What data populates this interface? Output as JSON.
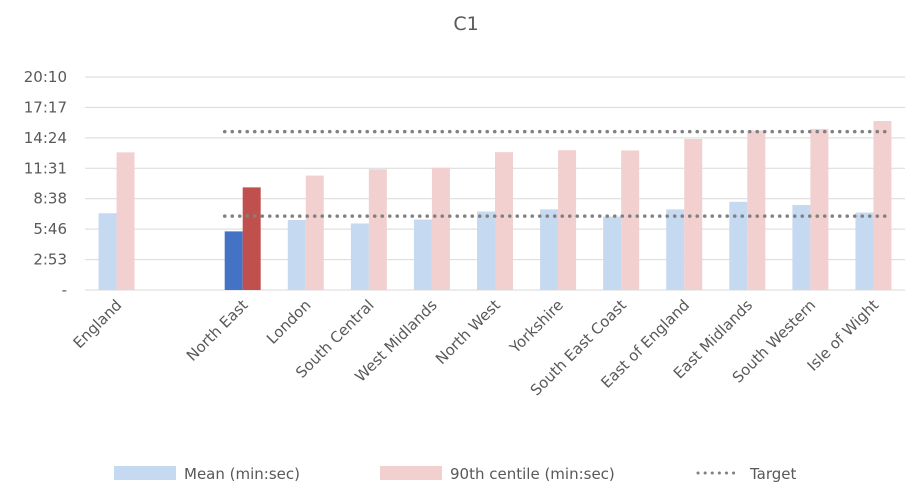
{
  "chart_data": {
    "type": "bar",
    "title": "C1",
    "xlabel": "",
    "ylabel": "",
    "y_tick_labels": [
      "-",
      "2:53",
      "5:46",
      "8:38",
      "11:31",
      "14:24",
      "17:17",
      "20:10"
    ],
    "ylim_seconds": [
      0,
      1210
    ],
    "grid": true,
    "legend_position": "bottom",
    "categories": [
      "England",
      "",
      "North East",
      "London",
      "South Central",
      "West Midlands",
      "North West",
      "Yorkshire",
      "South East Coast",
      "East of England",
      "East Midlands",
      "South Western",
      "Isle of Wight"
    ],
    "series": [
      {
        "name": "Mean (min:sec)",
        "kind": "bar",
        "unit": "seconds",
        "values": [
          436,
          null,
          333,
          398,
          378,
          400,
          446,
          458,
          417,
          458,
          501,
          483,
          440
        ],
        "color": "#c5d9f1",
        "highlight": {
          "North East": "#4472c4"
        }
      },
      {
        "name": "90th centile (min:sec)",
        "kind": "bar",
        "unit": "seconds",
        "values": [
          782,
          null,
          583,
          650,
          686,
          695,
          783,
          794,
          793,
          858,
          906,
          915,
          960
        ],
        "color": "#f2d0d0",
        "highlight": {
          "North East": "#c0504d"
        }
      },
      {
        "name": "Target",
        "kind": "line",
        "style": "dotted",
        "color": "#808080",
        "segments": [
          {
            "from": "North East",
            "to": "Isle of Wight",
            "value": 420
          },
          {
            "from": "North East",
            "to": "Isle of Wight",
            "value": 900
          }
        ]
      }
    ]
  }
}
